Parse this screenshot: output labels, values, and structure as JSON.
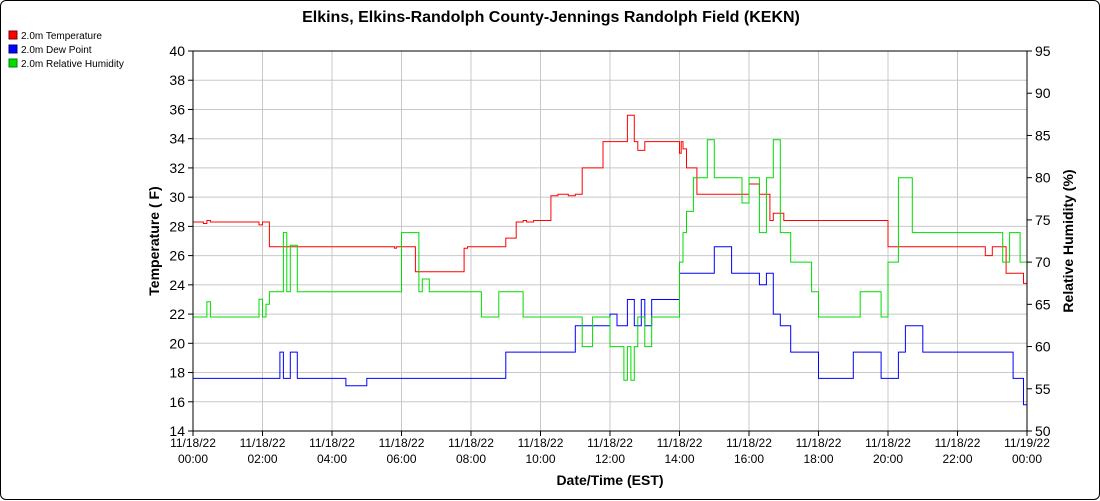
{
  "chart_data": {
    "type": "line",
    "title": "Elkins, Elkins-Randolph County-Jennings Randolph Field (KEKN)",
    "xlabel": "Date/Time (EST)",
    "ylabel_left": "Temperature ( F)",
    "ylabel_right": "Relative Humidity (%)",
    "ylim_left": [
      14,
      40
    ],
    "ylim_right": [
      50,
      95
    ],
    "yticks_left": [
      "14",
      "16",
      "18",
      "20",
      "22",
      "24",
      "26",
      "28",
      "30",
      "32",
      "34",
      "36",
      "38",
      "40"
    ],
    "yticks_right": [
      "50",
      "55",
      "60",
      "65",
      "70",
      "75",
      "80",
      "85",
      "90",
      "95"
    ],
    "xlim_hours": [
      0,
      24
    ],
    "xticks": [
      {
        "date": "11/18/22",
        "time": "00:00"
      },
      {
        "date": "11/18/22",
        "time": "02:00"
      },
      {
        "date": "11/18/22",
        "time": "04:00"
      },
      {
        "date": "11/18/22",
        "time": "06:00"
      },
      {
        "date": "11/18/22",
        "time": "08:00"
      },
      {
        "date": "11/18/22",
        "time": "10:00"
      },
      {
        "date": "11/18/22",
        "time": "12:00"
      },
      {
        "date": "11/18/22",
        "time": "14:00"
      },
      {
        "date": "11/18/22",
        "time": "16:00"
      },
      {
        "date": "11/18/22",
        "time": "18:00"
      },
      {
        "date": "11/18/22",
        "time": "20:00"
      },
      {
        "date": "11/18/22",
        "time": "22:00"
      },
      {
        "date": "11/19/22",
        "time": "00:00"
      }
    ],
    "grid": true,
    "legend_position": "top-left",
    "series": [
      {
        "name": "2.0m Temperature",
        "color": "#ff0000",
        "axis": "left",
        "x": [
          0,
          0.1,
          0.2,
          0.3,
          0.4,
          0.5,
          1.0,
          1.5,
          1.9,
          2.0,
          2.1,
          2.2,
          2.3,
          3.0,
          3.8,
          4.0,
          4.5,
          5.0,
          5.8,
          5.85,
          6.0,
          6.4,
          6.5,
          7.0,
          7.8,
          7.9,
          8.0,
          8.2,
          8.3,
          8.8,
          9.0,
          9.3,
          9.4,
          9.5,
          9.6,
          9.8,
          10.0,
          10.3,
          10.5,
          10.8,
          11.0,
          11.2,
          11.5,
          11.8,
          12.0,
          12.3,
          12.5,
          12.6,
          12.7,
          12.8,
          13.0,
          13.5,
          13.9,
          14.0,
          14.05,
          14.1,
          14.2,
          14.3,
          14.5,
          15.0,
          15.5,
          15.8,
          16.0,
          16.3,
          16.5,
          16.6,
          16.7,
          17.0,
          17.2,
          17.5,
          18.0,
          18.5,
          19.0,
          19.5,
          19.9,
          20.0,
          20.5,
          21.0,
          21.5,
          22.0,
          22.5,
          22.8,
          23.0,
          23.3,
          23.4,
          23.5,
          23.8,
          23.9,
          24.0
        ],
        "y": [
          28.3,
          28.3,
          28.3,
          28.2,
          28.4,
          28.3,
          28.3,
          28.3,
          28.1,
          28.3,
          28.3,
          26.6,
          26.6,
          26.6,
          26.6,
          26.6,
          26.6,
          26.6,
          26.5,
          26.6,
          26.6,
          24.9,
          24.9,
          24.9,
          26.5,
          26.6,
          26.6,
          26.6,
          26.6,
          26.6,
          27.2,
          28.3,
          28.3,
          28.4,
          28.3,
          28.4,
          28.4,
          30.1,
          30.2,
          30.1,
          30.2,
          32.0,
          32.0,
          33.8,
          33.8,
          33.8,
          35.6,
          35.6,
          33.8,
          33.2,
          33.8,
          33.8,
          33.8,
          33.0,
          33.8,
          33.3,
          32.0,
          32.0,
          30.2,
          30.2,
          30.2,
          30.2,
          30.9,
          30.2,
          30.2,
          28.4,
          28.9,
          28.4,
          28.4,
          28.4,
          28.4,
          28.4,
          28.4,
          28.4,
          28.4,
          26.6,
          26.6,
          26.6,
          26.6,
          26.6,
          26.6,
          26.0,
          26.6,
          26.6,
          24.8,
          24.8,
          24.8,
          24.1,
          24.8
        ]
      },
      {
        "name": "2.0m Dew Point",
        "color": "#0000ff",
        "axis": "left",
        "x": [
          0,
          0.3,
          0.5,
          0.8,
          1.0,
          1.5,
          2.0,
          2.4,
          2.5,
          2.6,
          2.8,
          3.0,
          3.4,
          4.0,
          4.4,
          5.0,
          5.8,
          6.0,
          6.4,
          7.0,
          7.8,
          8.0,
          8.5,
          8.9,
          9.0,
          9.5,
          9.9,
          10.0,
          10.3,
          10.5,
          10.8,
          11.0,
          11.5,
          11.9,
          12.0,
          12.2,
          12.5,
          12.7,
          12.9,
          13.0,
          13.2,
          13.5,
          13.8,
          14.0,
          14.1,
          14.5,
          14.8,
          15.0,
          15.5,
          15.8,
          16.0,
          16.3,
          16.5,
          16.7,
          16.9,
          17.0,
          17.2,
          17.4,
          17.8,
          18.0,
          18.5,
          18.9,
          19.0,
          19.5,
          19.8,
          20.0,
          20.3,
          20.5,
          20.7,
          21.0,
          21.5,
          22.0,
          22.5,
          22.8,
          23.0,
          23.3,
          23.6,
          23.8,
          23.9,
          24.0
        ],
        "y": [
          17.6,
          17.6,
          17.6,
          17.6,
          17.6,
          17.6,
          17.6,
          17.6,
          19.4,
          17.6,
          19.4,
          17.6,
          17.6,
          17.6,
          17.1,
          17.6,
          17.6,
          17.6,
          17.6,
          17.6,
          17.6,
          17.6,
          17.6,
          17.6,
          19.4,
          19.4,
          19.4,
          19.4,
          19.4,
          19.4,
          19.4,
          21.2,
          21.2,
          21.2,
          22.0,
          21.2,
          23.0,
          21.2,
          23.0,
          21.2,
          23.0,
          23.0,
          23.0,
          24.8,
          24.8,
          24.8,
          24.8,
          26.6,
          24.8,
          24.8,
          24.8,
          24.0,
          24.8,
          22.0,
          21.2,
          21.2,
          19.4,
          19.4,
          19.4,
          17.6,
          17.6,
          17.6,
          19.4,
          19.4,
          17.6,
          17.6,
          19.4,
          21.2,
          21.2,
          19.4,
          19.4,
          19.4,
          19.4,
          19.4,
          19.4,
          19.4,
          17.6,
          17.6,
          15.8,
          15.8
        ]
      },
      {
        "name": "2.0m Relative Humidity",
        "color": "#00dd00",
        "axis": "right",
        "x": [
          0,
          0.3,
          0.4,
          0.5,
          1.0,
          1.5,
          1.9,
          2.0,
          2.1,
          2.2,
          2.5,
          2.6,
          2.7,
          2.8,
          3.0,
          3.5,
          4.0,
          4.5,
          5.0,
          5.8,
          5.9,
          6.0,
          6.2,
          6.4,
          6.5,
          6.6,
          6.8,
          7.0,
          7.5,
          7.8,
          8.0,
          8.2,
          8.3,
          8.5,
          8.8,
          9.0,
          9.5,
          9.8,
          10.0,
          10.3,
          10.5,
          10.8,
          11.0,
          11.2,
          11.5,
          11.8,
          12.0,
          12.2,
          12.4,
          12.5,
          12.6,
          12.7,
          12.8,
          13.0,
          13.2,
          13.5,
          13.8,
          14.0,
          14.1,
          14.2,
          14.4,
          14.6,
          14.8,
          15.0,
          15.2,
          15.5,
          15.8,
          16.0,
          16.3,
          16.5,
          16.7,
          16.9,
          17.0,
          17.2,
          17.5,
          17.8,
          18.0,
          18.5,
          19.0,
          19.2,
          19.5,
          19.8,
          20.0,
          20.3,
          20.5,
          20.7,
          21.0,
          21.5,
          22.0,
          22.5,
          23.0,
          23.3,
          23.5,
          23.8,
          24.0
        ],
        "y": [
          63.5,
          63.5,
          65.3,
          63.5,
          63.5,
          63.5,
          65.6,
          63.5,
          65.0,
          66.5,
          66.5,
          73.5,
          66.5,
          72.0,
          66.5,
          66.5,
          66.5,
          66.5,
          66.5,
          66.5,
          66.5,
          73.5,
          73.5,
          73.5,
          66.5,
          68.0,
          66.5,
          66.5,
          66.5,
          66.5,
          66.5,
          66.5,
          63.5,
          63.5,
          66.5,
          66.5,
          63.5,
          63.5,
          63.5,
          63.5,
          63.5,
          63.5,
          63.5,
          60.0,
          63.5,
          63.5,
          60.0,
          60.0,
          56.0,
          60.0,
          56.0,
          60.0,
          63.5,
          60.0,
          63.5,
          63.5,
          63.5,
          70.0,
          73.5,
          76.0,
          80.0,
          80.0,
          84.5,
          80.0,
          80.0,
          80.0,
          77.0,
          80.0,
          73.5,
          80.0,
          84.5,
          73.5,
          73.5,
          70.0,
          70.0,
          66.5,
          63.5,
          63.5,
          63.5,
          66.5,
          66.5,
          63.5,
          70.0,
          80.0,
          80.0,
          73.5,
          73.5,
          73.5,
          73.5,
          73.5,
          73.5,
          70.0,
          73.5,
          70.0,
          70.0
        ]
      }
    ]
  }
}
